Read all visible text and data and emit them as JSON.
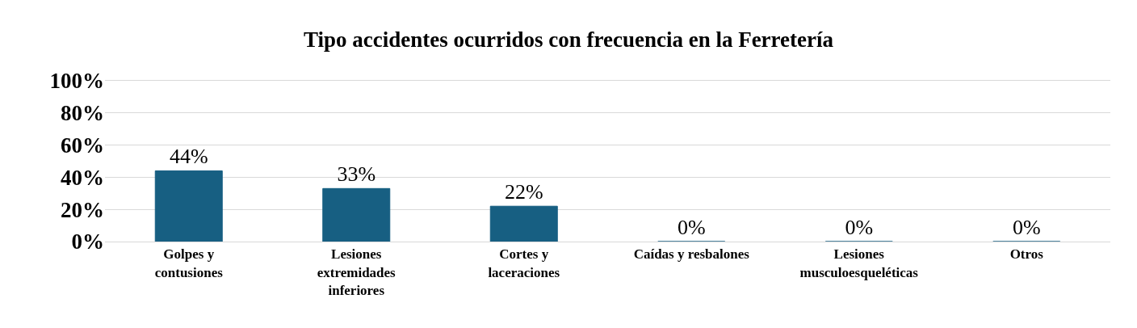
{
  "chart_data": {
    "type": "bar",
    "title": "Tipo accidentes ocurridos con frecuencia en la Ferretería",
    "categories": [
      "Golpes y\ncontusiones",
      "Lesiones\nextremidades\ninferiores",
      "Cortes y\nlaceraciones",
      "Caídas y resbalones",
      "Lesiones\nmusculoesqueléticas",
      "Otros"
    ],
    "values": [
      44,
      33,
      22,
      0,
      0,
      0
    ],
    "value_labels": [
      "44%",
      "33%",
      "22%",
      "0%",
      "0%",
      "0%"
    ],
    "color": "#175f82",
    "ylim": [
      0,
      100
    ],
    "yticks": [
      {
        "value": 0,
        "label": "0%"
      },
      {
        "value": 20,
        "label": "20%"
      },
      {
        "value": 40,
        "label": "40%"
      },
      {
        "value": 60,
        "label": "60%"
      },
      {
        "value": 80,
        "label": "80%"
      },
      {
        "value": 100,
        "label": "100%"
      }
    ],
    "grid": "y",
    "legend": false
  }
}
